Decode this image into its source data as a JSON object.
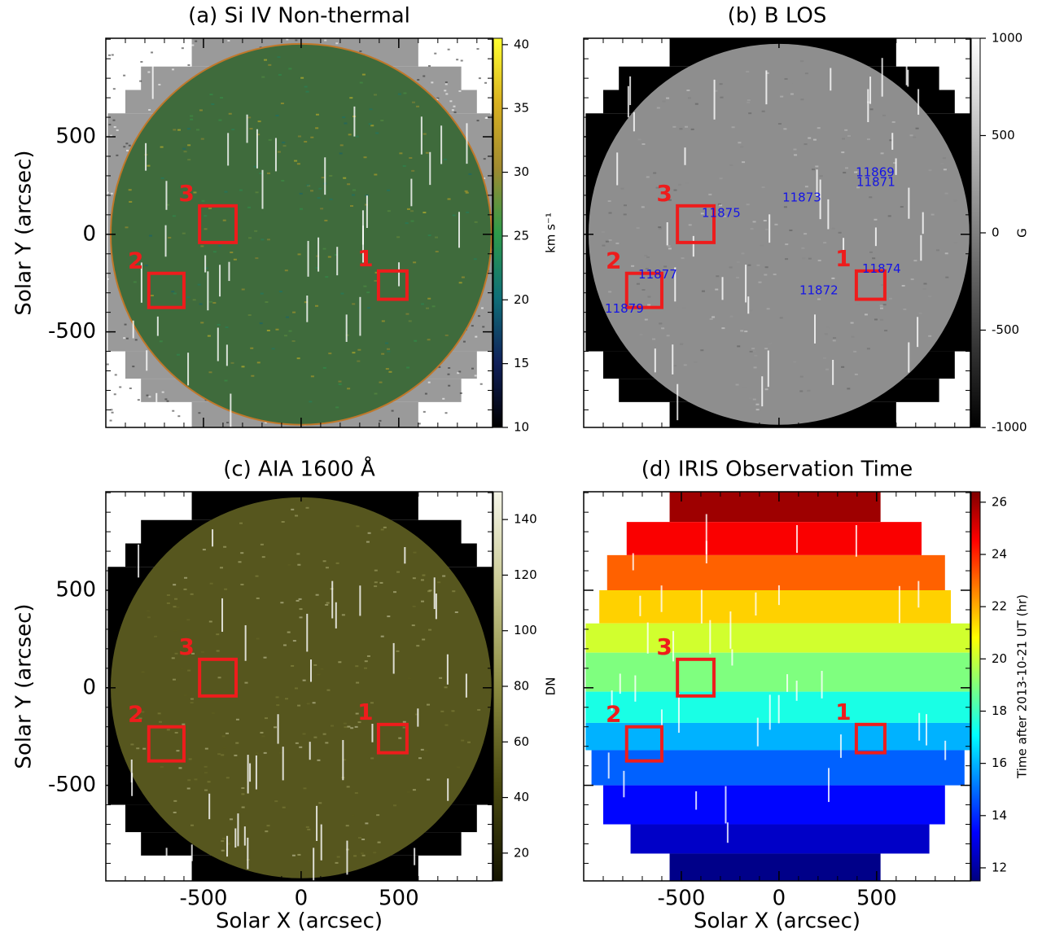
{
  "chart_data": [
    {
      "type": "image",
      "title": "(a) Si IV Non-thermal",
      "ylabel": "Solar Y (arcsec)",
      "xlim": [
        -1000,
        980
      ],
      "ylim": [
        -990,
        1005
      ],
      "xticks": [
        -500,
        0,
        500
      ],
      "yticks": [
        -500,
        0,
        500
      ],
      "footprint_color": "#9a9a9a",
      "disk_color": "#3f6b3c",
      "colorbar": {
        "label": "km s⁻¹",
        "lim": [
          10,
          40.5
        ],
        "ticks": [
          10,
          15,
          20,
          25,
          30,
          35,
          40
        ],
        "colors": [
          "#000000",
          "#10205a",
          "#0f6f78",
          "#2e9a4a",
          "#a08a30",
          "#d8b020",
          "#ffff30"
        ]
      },
      "regions": [
        {
          "label": "1",
          "x": [
            396,
            542
          ],
          "y": [
            -333,
            -188
          ]
        },
        {
          "label": "2",
          "x": [
            -780,
            -600
          ],
          "y": [
            -375,
            -200
          ]
        },
        {
          "label": "3",
          "x": [
            -520,
            -333
          ],
          "y": [
            -42,
            146
          ]
        }
      ],
      "region_color": "#ee1c1c"
    },
    {
      "type": "image",
      "title": "(b) B LOS",
      "xlim": [
        -1000,
        980
      ],
      "ylim": [
        -990,
        1005
      ],
      "xticks": [
        -500,
        0,
        500
      ],
      "yticks": [
        -500,
        0,
        500
      ],
      "footprint_color": "#000000",
      "disk_color": "#8e8e8e",
      "colorbar": {
        "label": "G",
        "lim": [
          -1000,
          1000
        ],
        "ticks": [
          -1000,
          -500,
          0,
          500,
          1000
        ],
        "colors": [
          "#000000",
          "#ffffff"
        ]
      },
      "regions": [
        {
          "label": "1",
          "x": [
            396,
            542
          ],
          "y": [
            -333,
            -188
          ]
        },
        {
          "label": "2",
          "x": [
            -780,
            -600
          ],
          "y": [
            -375,
            -200
          ]
        },
        {
          "label": "3",
          "x": [
            -520,
            -333
          ],
          "y": [
            -42,
            146
          ]
        }
      ],
      "region_color": "#ee1c1c",
      "annotations": [
        {
          "text": "11869",
          "x": 492,
          "y": 317
        },
        {
          "text": "11871",
          "x": 496,
          "y": 267
        },
        {
          "text": "11873",
          "x": 117,
          "y": 188
        },
        {
          "text": "11875",
          "x": -296,
          "y": 108
        },
        {
          "text": "11877",
          "x": -621,
          "y": -208
        },
        {
          "text": "11879",
          "x": -792,
          "y": -383
        },
        {
          "text": "11872",
          "x": 204,
          "y": -288
        },
        {
          "text": "11874",
          "x": 525,
          "y": -179
        }
      ],
      "annotation_color": "#1414e6"
    },
    {
      "type": "image",
      "title": "(c) AIA 1600 Å",
      "xlabel": "Solar X (arcsec)",
      "ylabel": "Solar Y (arcsec)",
      "xlim": [
        -1000,
        980
      ],
      "ylim": [
        -990,
        1005
      ],
      "xticks": [
        -500,
        0,
        500
      ],
      "yticks": [
        -500,
        0,
        500
      ],
      "footprint_color": "#000000",
      "disk_color": "#56561e",
      "colorbar": {
        "label": "DN",
        "lim": [
          10,
          150
        ],
        "ticks": [
          20,
          40,
          60,
          80,
          100,
          120,
          140
        ],
        "colors": [
          "#141400",
          "#4a4a10",
          "#8a8a40",
          "#c8c890",
          "#f5f5e8"
        ]
      },
      "regions": [
        {
          "label": "1",
          "x": [
            396,
            542
          ],
          "y": [
            -333,
            -188
          ]
        },
        {
          "label": "2",
          "x": [
            -780,
            -600
          ],
          "y": [
            -375,
            -200
          ]
        },
        {
          "label": "3",
          "x": [
            -520,
            -333
          ],
          "y": [
            -42,
            146
          ]
        }
      ],
      "region_color": "#ee1c1c"
    },
    {
      "type": "raster",
      "title": "(d) IRIS Observation Time",
      "xlabel": "Solar X (arcsec)",
      "xlim": [
        -1000,
        980
      ],
      "ylim": [
        -990,
        1005
      ],
      "xticks": [
        -500,
        0,
        500
      ],
      "yticks": [
        -500,
        0,
        500
      ],
      "colorbar": {
        "label": "Time after 2013-10-21 UT (hr)",
        "lim": [
          11.5,
          26.4
        ],
        "ticks": [
          12,
          14,
          16,
          18,
          20,
          22,
          24,
          26
        ],
        "colors": [
          "#00007f",
          "#0000ff",
          "#007fff",
          "#00ffff",
          "#7fff7f",
          "#ffff00",
          "#ff7f00",
          "#ff0000",
          "#7f0000"
        ]
      },
      "regions": [
        {
          "label": "1",
          "x": [
            396,
            542
          ],
          "y": [
            -333,
            -188
          ]
        },
        {
          "label": "2",
          "x": [
            -780,
            -600
          ],
          "y": [
            -375,
            -200
          ]
        },
        {
          "label": "3",
          "x": [
            -520,
            -333
          ],
          "y": [
            -42,
            146
          ]
        }
      ],
      "region_color": "#ee1c1c"
    }
  ]
}
